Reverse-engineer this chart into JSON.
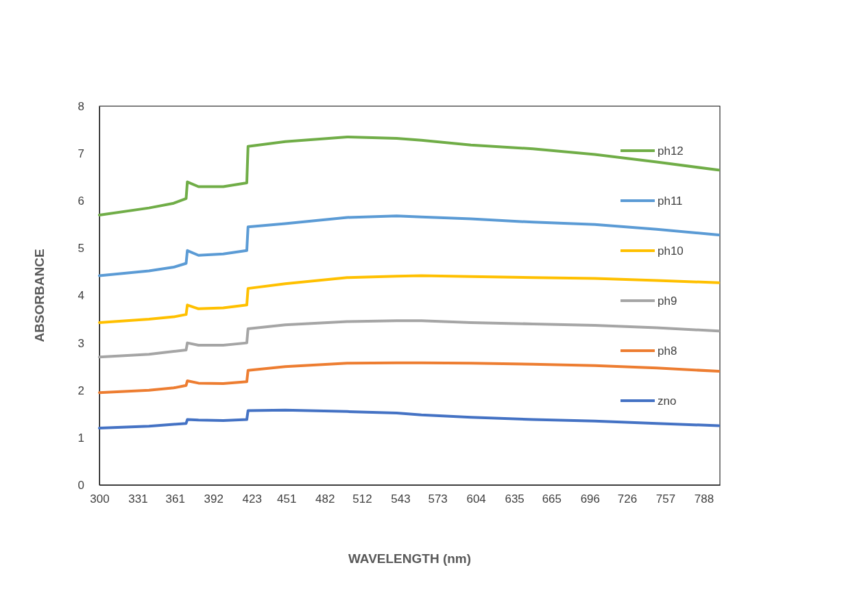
{
  "chart_data": {
    "type": "line",
    "xlabel": "WAVELENGTH (nm)",
    "ylabel": "ABSORBANCE",
    "xlim": [
      300,
      801
    ],
    "xticks": [
      300,
      331,
      361,
      392,
      423,
      451,
      482,
      512,
      543,
      573,
      604,
      635,
      665,
      696,
      726,
      757,
      788
    ],
    "ylim": [
      0,
      8
    ],
    "yticks": [
      0,
      1,
      2,
      3,
      4,
      5,
      6,
      7,
      8
    ],
    "grid": false,
    "legend": "right",
    "marker": "none",
    "line_style": "solid",
    "x": [
      300,
      340,
      360,
      370,
      371,
      380,
      400,
      419,
      420,
      450,
      500,
      540,
      560,
      600,
      650,
      700,
      750,
      800
    ],
    "series": [
      {
        "name": "zno",
        "color": "#4472c4",
        "values": [
          1.2,
          1.24,
          1.28,
          1.3,
          1.38,
          1.37,
          1.36,
          1.38,
          1.57,
          1.58,
          1.55,
          1.52,
          1.48,
          1.43,
          1.38,
          1.35,
          1.3,
          1.25
        ]
      },
      {
        "name": "ph8",
        "color": "#ed7d31",
        "values": [
          1.95,
          2.0,
          2.05,
          2.1,
          2.2,
          2.15,
          2.14,
          2.18,
          2.42,
          2.5,
          2.57,
          2.58,
          2.58,
          2.57,
          2.55,
          2.52,
          2.47,
          2.4
        ]
      },
      {
        "name": "ph9",
        "color": "#a5a5a5",
        "values": [
          2.7,
          2.76,
          2.82,
          2.85,
          3.0,
          2.95,
          2.95,
          3.0,
          3.3,
          3.38,
          3.45,
          3.47,
          3.47,
          3.43,
          3.4,
          3.37,
          3.32,
          3.25
        ]
      },
      {
        "name": "ph10",
        "color": "#ffc000",
        "values": [
          3.43,
          3.5,
          3.55,
          3.6,
          3.8,
          3.72,
          3.74,
          3.8,
          4.15,
          4.25,
          4.38,
          4.41,
          4.42,
          4.4,
          4.38,
          4.36,
          4.32,
          4.27
        ]
      },
      {
        "name": "ph11",
        "color": "#5b9bd5",
        "values": [
          4.42,
          4.52,
          4.6,
          4.68,
          4.95,
          4.85,
          4.88,
          4.95,
          5.45,
          5.52,
          5.65,
          5.68,
          5.66,
          5.62,
          5.55,
          5.5,
          5.4,
          5.28
        ]
      },
      {
        "name": "ph12",
        "color": "#70ad47",
        "values": [
          5.7,
          5.85,
          5.95,
          6.05,
          6.4,
          6.3,
          6.3,
          6.38,
          7.15,
          7.25,
          7.35,
          7.32,
          7.28,
          7.18,
          7.1,
          6.98,
          6.82,
          6.65
        ]
      }
    ]
  }
}
